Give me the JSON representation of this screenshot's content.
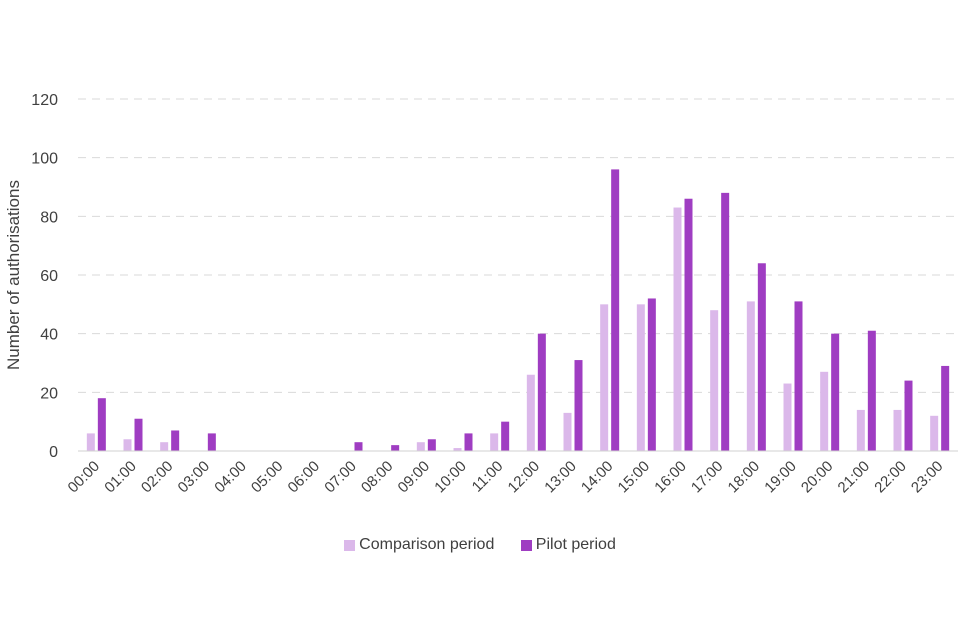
{
  "chart_data": {
    "type": "bar",
    "ylabel": "Number of authorisations",
    "xlabel": "",
    "ylim": [
      0,
      120
    ],
    "yticks": [
      0,
      20,
      40,
      60,
      80,
      100,
      120
    ],
    "grid": "horizontal dashed",
    "legend_position": "bottom",
    "categories": [
      "00:00",
      "01:00",
      "02:00",
      "03:00",
      "04:00",
      "05:00",
      "06:00",
      "07:00",
      "08:00",
      "09:00",
      "10:00",
      "11:00",
      "12:00",
      "13:00",
      "14:00",
      "15:00",
      "16:00",
      "17:00",
      "18:00",
      "19:00",
      "20:00",
      "21:00",
      "22:00",
      "23:00"
    ],
    "series": [
      {
        "name": "Comparison period",
        "color": "#dbb8ea",
        "values": [
          6,
          4,
          3,
          0,
          0,
          0,
          0,
          0,
          0,
          3,
          1,
          6,
          26,
          13,
          50,
          50,
          83,
          48,
          51,
          23,
          27,
          14,
          14,
          12
        ]
      },
      {
        "name": "Pilot period",
        "color": "#9f3dc2",
        "values": [
          18,
          11,
          7,
          6,
          0,
          0,
          0,
          3,
          2,
          4,
          6,
          10,
          40,
          31,
          96,
          52,
          86,
          88,
          64,
          51,
          40,
          41,
          24,
          29
        ]
      }
    ]
  }
}
